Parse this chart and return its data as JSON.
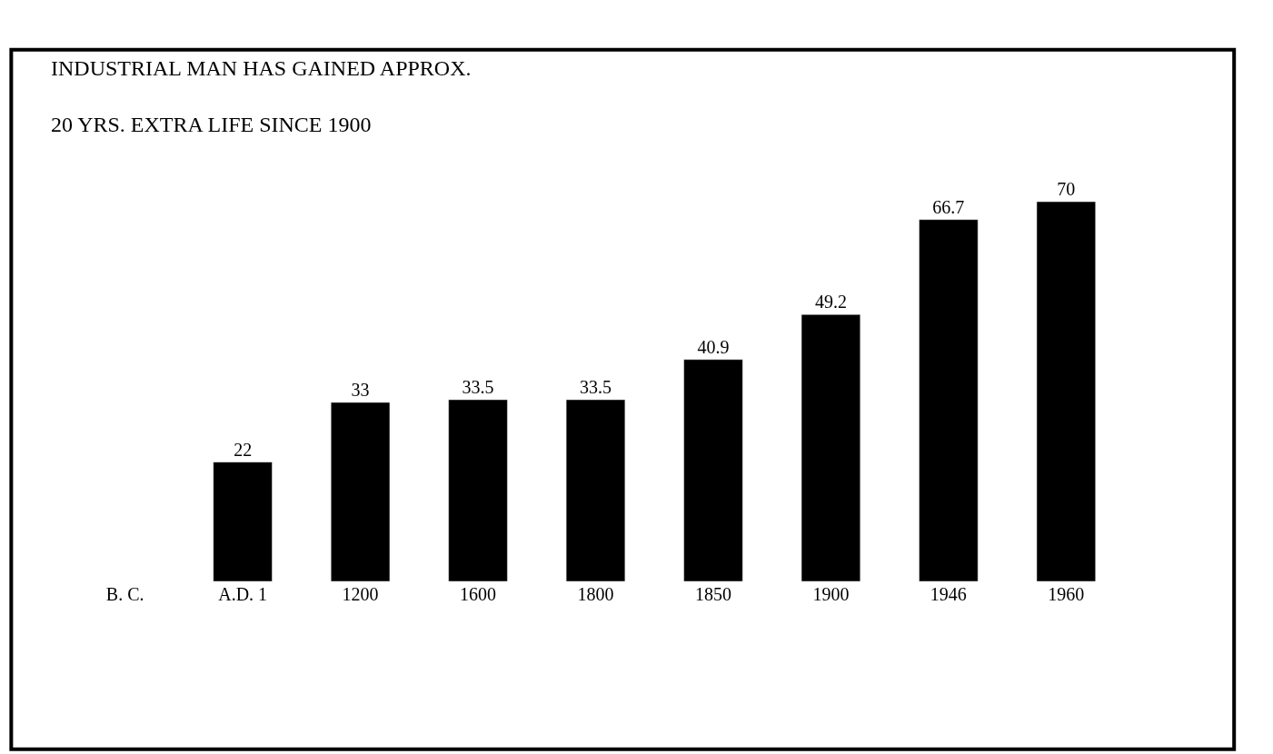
{
  "chart_data": {
    "type": "bar",
    "title": "INDUSTRIAL MAN HAS GAINED APPROX.\n20 YRS. EXTRA LIFE SINCE 1900",
    "categories": [
      "B. C.",
      "A.D. 1",
      "1200",
      "1600",
      "1800",
      "1850",
      "1900",
      "1946",
      "1960"
    ],
    "values": [
      null,
      22,
      33,
      33.5,
      33.5,
      40.9,
      49.2,
      66.7,
      70
    ],
    "value_labels": [
      null,
      "22",
      "33",
      "33.5",
      "33.5",
      "40.9",
      "49.2",
      "66.7",
      "70"
    ],
    "color": "#000000",
    "legend": false
  }
}
